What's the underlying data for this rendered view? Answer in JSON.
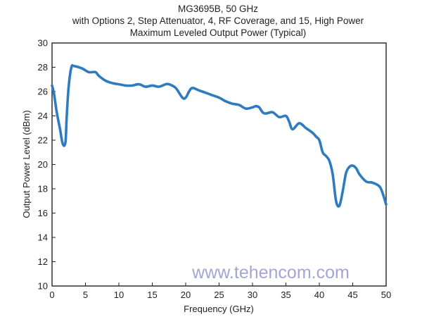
{
  "chart_data": {
    "type": "line",
    "title_lines": [
      "MG3695B, 50 GHz",
      "with Options 2, Step Attenuator, 4, RF Coverage, and 15, High Power",
      "Maximum Leveled Output Power (Typical)"
    ],
    "xlabel": "Frequency (GHz)",
    "ylabel": "Output Power Level (dBm)",
    "xlim": [
      0,
      50
    ],
    "ylim": [
      10,
      30
    ],
    "x_ticks": [
      0,
      5,
      10,
      15,
      20,
      25,
      30,
      35,
      40,
      45,
      50
    ],
    "y_ticks": [
      10,
      12,
      14,
      16,
      18,
      20,
      22,
      24,
      26,
      28,
      30
    ],
    "grid": false,
    "legend": "none",
    "line_color": "#2e7bc0",
    "series": [
      {
        "x": [
          0,
          0.3,
          0.7,
          1.2,
          1.6,
          2.0,
          2.2,
          2.5,
          2.9,
          3.3,
          4.5,
          5.5,
          6.5,
          7.0,
          8.0,
          9.0,
          10.0,
          11.0,
          12.0,
          13.0,
          14.0,
          15.0,
          16.0,
          17.0,
          17.5,
          18.5,
          19.5,
          20.0,
          20.5,
          21.0,
          22.0,
          23.0,
          24.0,
          25.0,
          26.0,
          27.0,
          28.0,
          29.0,
          30.0,
          30.5,
          31.0,
          31.5,
          32.0,
          33.0,
          34.0,
          35.0,
          35.5,
          36.0,
          37.0,
          38.0,
          39.0,
          39.5,
          40.0,
          40.5,
          41.0,
          41.5,
          42.0,
          42.5,
          43.0,
          43.5,
          44.0,
          44.5,
          45.0,
          45.5,
          46.0,
          47.0,
          48.0,
          49.0,
          49.5,
          50.0
        ],
        "y": [
          26.5,
          25.8,
          24.3,
          22.9,
          21.7,
          21.8,
          24.0,
          26.5,
          28.0,
          28.1,
          27.9,
          27.6,
          27.6,
          27.3,
          26.9,
          26.7,
          26.6,
          26.5,
          26.5,
          26.6,
          26.4,
          26.5,
          26.4,
          26.6,
          26.6,
          26.3,
          25.5,
          25.5,
          26.0,
          26.3,
          26.1,
          25.9,
          25.7,
          25.5,
          25.2,
          25.0,
          24.9,
          24.6,
          24.7,
          24.8,
          24.7,
          24.3,
          24.2,
          24.3,
          23.9,
          24.0,
          23.5,
          22.9,
          23.4,
          23.0,
          22.6,
          22.3,
          22.0,
          21.0,
          20.7,
          20.3,
          19.2,
          17.0,
          16.6,
          17.8,
          19.3,
          19.8,
          19.9,
          19.7,
          19.2,
          18.6,
          18.5,
          18.2,
          17.6,
          16.7
        ]
      }
    ]
  },
  "watermark": "www.tehencom.com"
}
